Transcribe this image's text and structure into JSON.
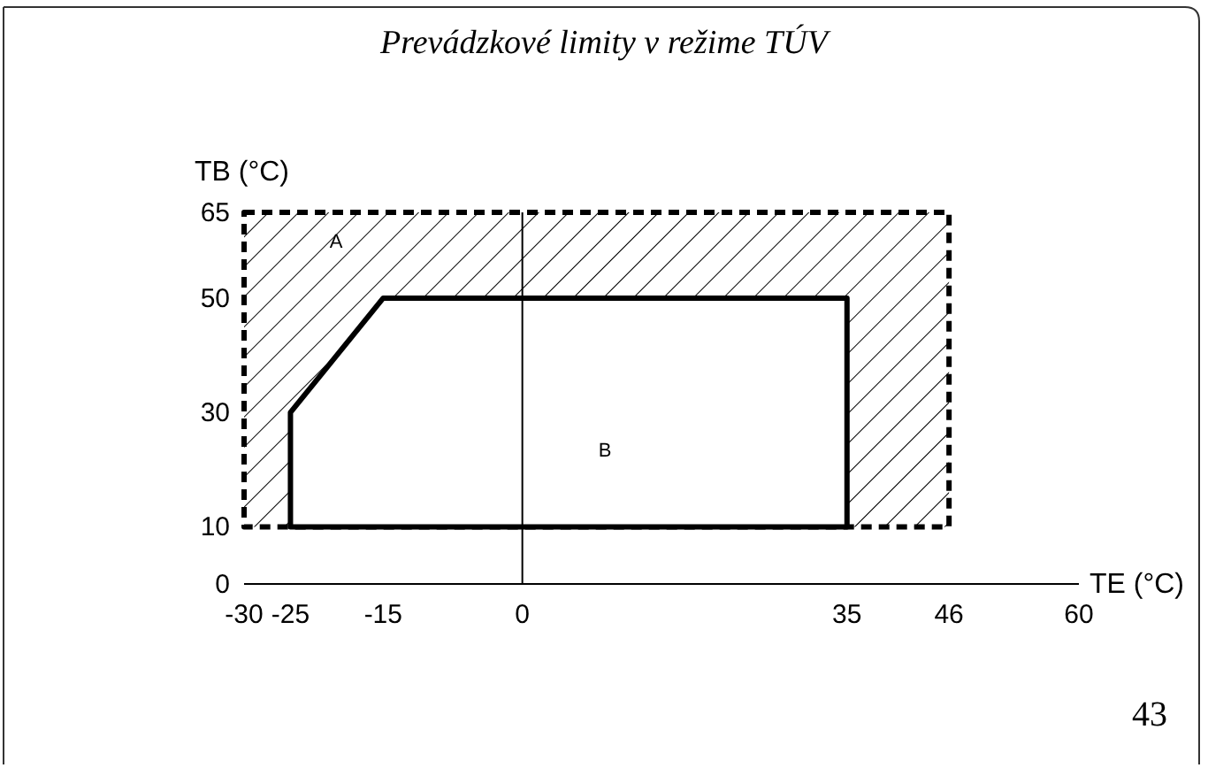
{
  "chart_data": {
    "type": "area",
    "title": "Prevádzkové limity v režime TÚV",
    "xlabel": "TE (°C)",
    "ylabel": "TB (°C)",
    "xlim": [
      -30,
      60
    ],
    "xticks": [
      -30,
      -25,
      -15,
      0,
      35,
      46,
      60
    ],
    "ylim": [
      0,
      65
    ],
    "yticks": [
      0,
      10,
      30,
      50,
      65
    ],
    "series": [
      {
        "color": "#000000",
        "line_style": "dashed",
        "x": [
          -30,
          46,
          46,
          -30,
          -30
        ],
        "values": [
          65,
          65,
          10,
          10,
          65
        ]
      },
      {
        "color": "#000000",
        "line_style": "solid",
        "x": [
          -25,
          -25,
          -15,
          35,
          35,
          -25
        ],
        "values": [
          10,
          30,
          50,
          50,
          10,
          10
        ]
      }
    ],
    "annotations": [
      "A",
      "B",
      "43"
    ]
  }
}
